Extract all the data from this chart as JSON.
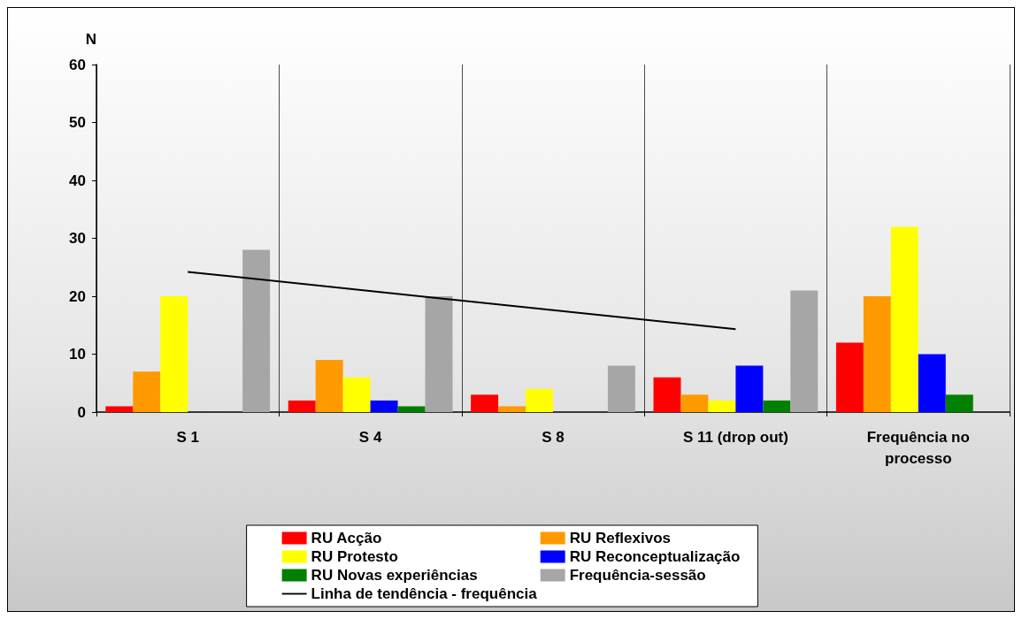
{
  "chart_data": {
    "type": "bar",
    "ylabel": "N",
    "categories": [
      "S 1",
      "S 4",
      "S 8",
      "S 11 (drop out)",
      "Frequência no\nprocesso"
    ],
    "series": [
      {
        "name": "RU Acção",
        "color": "#ff0000",
        "values": [
          1,
          2,
          3,
          6,
          12
        ]
      },
      {
        "name": "RU Reflexivos",
        "color": "#ff9900",
        "values": [
          7,
          9,
          1,
          3,
          20
        ]
      },
      {
        "name": "RU Protesto",
        "color": "#ffff00",
        "values": [
          20,
          6,
          4,
          2,
          32
        ]
      },
      {
        "name": "RU Reconceptualização",
        "color": "#0000ff",
        "values": [
          null,
          2,
          null,
          8,
          10
        ]
      },
      {
        "name": "RU Novas experiências",
        "color": "#008000",
        "values": [
          null,
          1,
          null,
          2,
          3
        ]
      },
      {
        "name": "Frequência-sessão",
        "color": "#a6a6a6",
        "values": [
          28,
          20,
          8,
          21,
          null
        ]
      },
      {
        "name": "Linha de tendência - frequência",
        "type": "line",
        "color": "#000000",
        "x": [
          "S 1",
          "S 11 (drop out)"
        ],
        "values": [
          24.2,
          14.3
        ]
      }
    ],
    "ylim": [
      0,
      60
    ],
    "yticks": [
      0,
      10,
      20,
      30,
      40,
      50,
      60
    ],
    "grid": "x",
    "legend": "bottom",
    "marker": "none"
  }
}
